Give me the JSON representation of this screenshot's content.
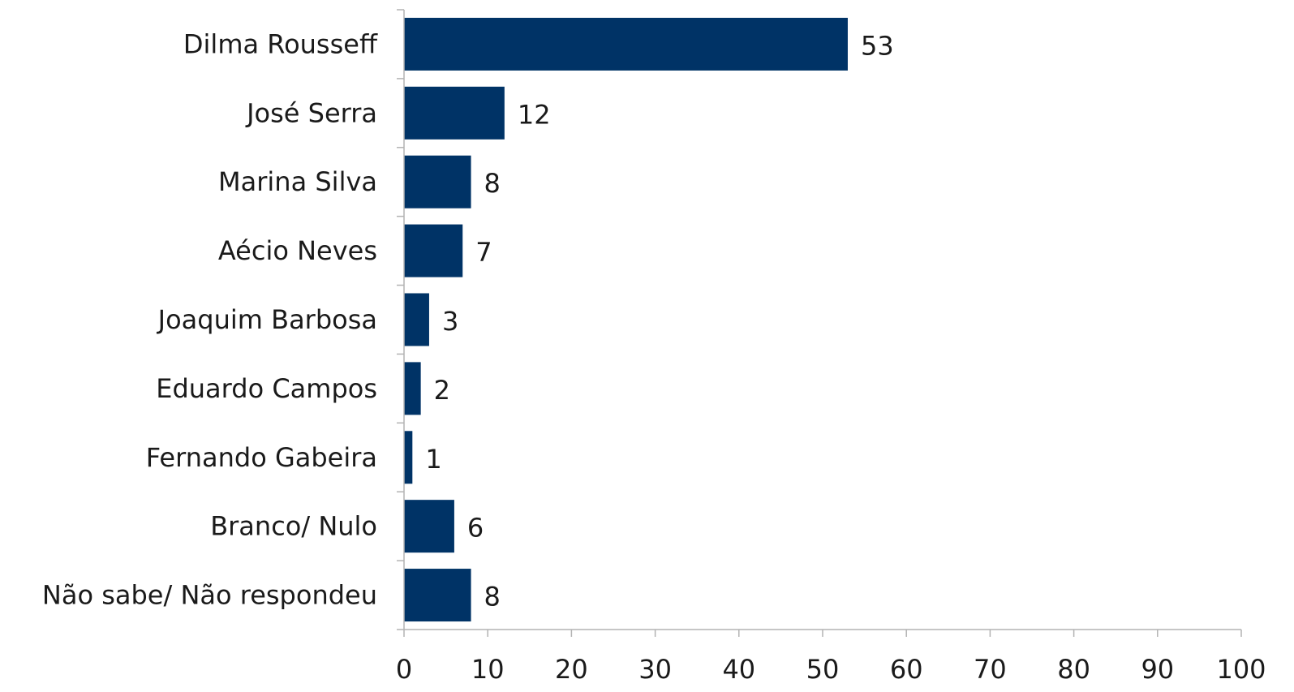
{
  "chart_data": {
    "type": "bar",
    "orientation": "horizontal",
    "categories": [
      "Dilma Rousseff",
      "José Serra",
      "Marina Silva",
      "Aécio Neves",
      "Joaquim Barbosa",
      "Eduardo Campos",
      "Fernando Gabeira",
      "Branco/ Nulo",
      "Não sabe/ Não respondeu"
    ],
    "values": [
      53,
      12,
      8,
      7,
      3,
      2,
      1,
      6,
      8
    ],
    "xlim": [
      0,
      100
    ],
    "xticks": [
      0,
      10,
      20,
      30,
      40,
      50,
      60,
      70,
      80,
      90,
      100
    ],
    "data_labels": true,
    "grid": false,
    "legend": "none",
    "bar_color": "#003366"
  }
}
